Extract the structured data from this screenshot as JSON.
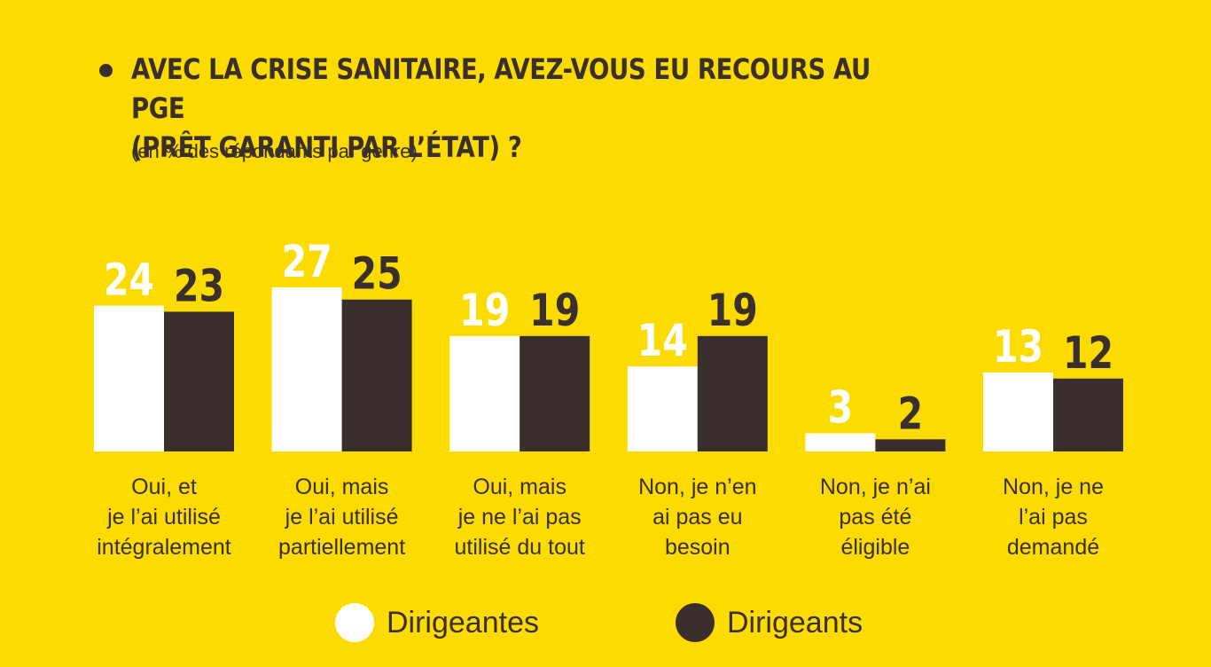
{
  "header": {
    "title_line1": "AVEC LA CRISE SANITAIRE, AVEZ-VOUS EU RECOURS AU PGE",
    "title_line2": "(PRÊT GARANTI PAR L’ÉTAT) ?",
    "subtitle": "(en % des répondants par genre)"
  },
  "colors": {
    "background": "#FCDC00",
    "dirigeantes": "#FFFFFF",
    "dirigeants": "#3A2F2D"
  },
  "chart_data": {
    "type": "bar",
    "title": "AVEC LA CRISE SANITAIRE, AVEZ-VOUS EU RECOURS AU PGE (PRÊT GARANTI PAR L’ÉTAT) ?",
    "subtitle": "(en % des répondants par genre)",
    "categories": [
      [
        "Oui, et",
        "je l’ai utilisé",
        "intégralement"
      ],
      [
        "Oui, mais",
        "je l’ai utilisé",
        "partiellement"
      ],
      [
        "Oui, mais",
        "je ne l’ai pas",
        "utilisé du tout"
      ],
      [
        "Non, je n’en",
        "ai pas eu",
        "besoin"
      ],
      [
        "Non, je n’ai",
        "pas été",
        "éligible"
      ],
      [
        "Non, je ne",
        "l’ai pas",
        "demandé"
      ]
    ],
    "series": [
      {
        "name": "Dirigeantes",
        "color": "#FFFFFF",
        "values": [
          24,
          27,
          19,
          14,
          3,
          13
        ]
      },
      {
        "name": "Dirigeants",
        "color": "#3A2F2D",
        "values": [
          23,
          25,
          19,
          19,
          2,
          12
        ]
      }
    ],
    "ylim": [
      0,
      27
    ],
    "grid": false,
    "legend_position": "bottom-center"
  },
  "legend": {
    "items": [
      {
        "label": "Dirigeantes",
        "color": "#FFFFFF"
      },
      {
        "label": "Dirigeants",
        "color": "#3A2F2D"
      }
    ]
  }
}
